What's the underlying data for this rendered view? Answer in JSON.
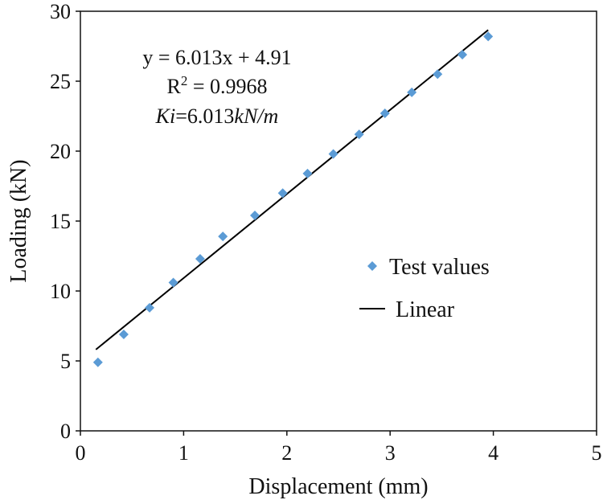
{
  "chart_data": {
    "type": "scatter",
    "xlabel": "Displacement (mm)",
    "ylabel": "Loading (kN)",
    "xlim": [
      0,
      5
    ],
    "ylim": [
      0,
      30
    ],
    "xticks": [
      "0",
      "1",
      "2",
      "3",
      "4",
      "5"
    ],
    "yticks": [
      "0",
      "5",
      "10",
      "15",
      "20",
      "25",
      "30"
    ],
    "grid": false,
    "series": [
      {
        "name": "Test values",
        "marker": "diamond",
        "color": "#5B9BD5",
        "x": [
          0.17,
          0.42,
          0.67,
          0.9,
          1.16,
          1.38,
          1.69,
          1.96,
          2.2,
          2.45,
          2.7,
          2.95,
          3.21,
          3.46,
          3.7,
          3.95
        ],
        "y": [
          4.9,
          6.9,
          8.8,
          10.6,
          12.3,
          13.9,
          15.4,
          17.0,
          18.4,
          19.8,
          21.2,
          22.7,
          24.2,
          25.5,
          26.9,
          28.2
        ]
      },
      {
        "name": "Linear",
        "type": "line",
        "color": "#000000",
        "slope": 6.013,
        "intercept": 4.91,
        "x_range": [
          0.15,
          3.95
        ]
      }
    ],
    "annotations": {
      "equation": "y = 6.013x + 4.91",
      "r2_prefix": "R",
      "r2_sup": "2",
      "r2_value": " = 0.9968",
      "ki_label": "Ki",
      "ki_mid": "=6.013",
      "ki_unit": "kN/m"
    },
    "legend": {
      "position": "right-middle",
      "items": [
        "Test values",
        "Linear"
      ]
    }
  }
}
